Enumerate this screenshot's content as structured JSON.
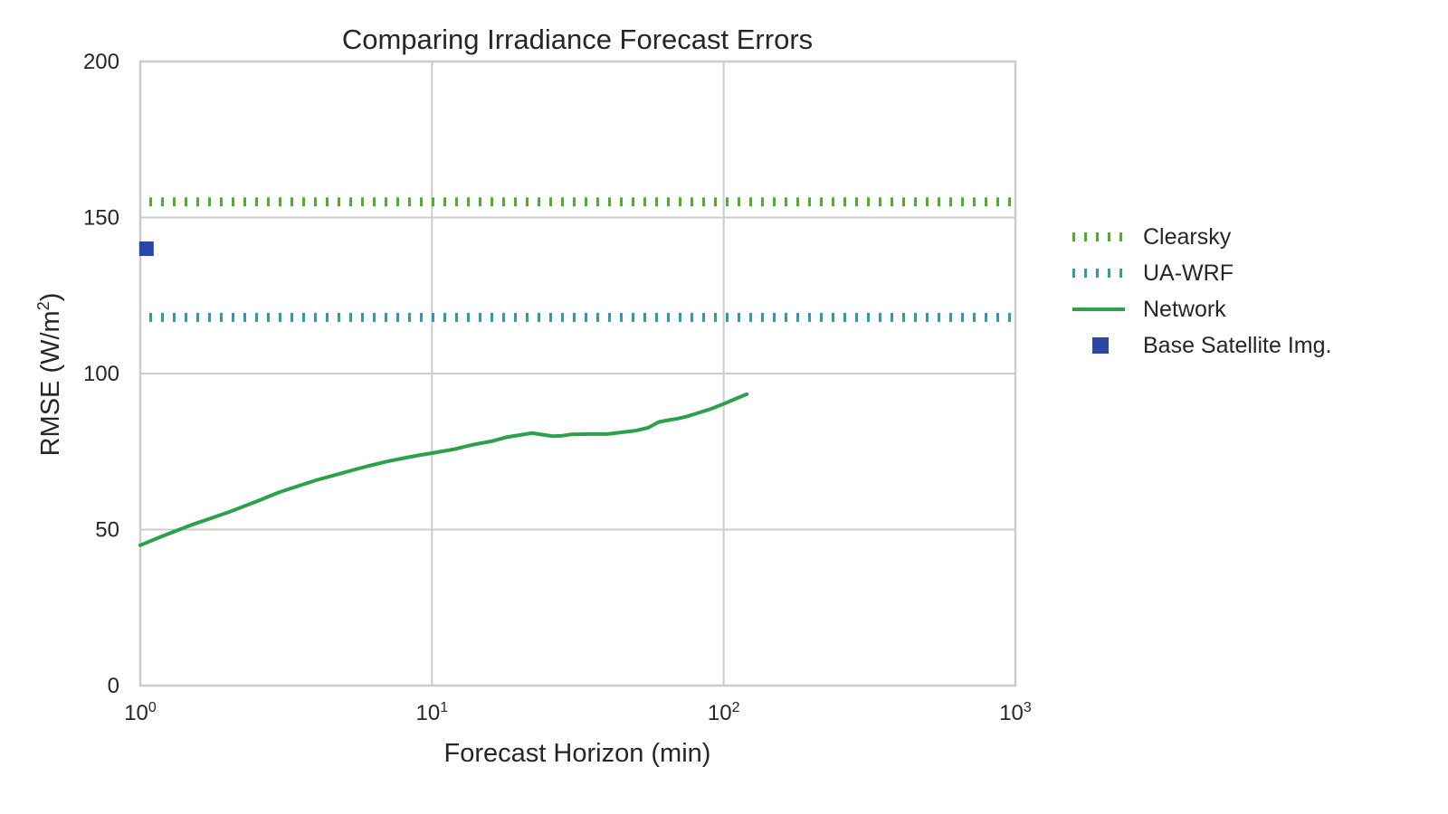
{
  "chart_data": {
    "type": "line",
    "title": "Comparing Irradiance Forecast Errors",
    "xlabel": "Forecast Horizon (min)",
    "ylabel_main": "RMSE (W/m",
    "ylabel_sup": "2",
    "ylabel_close": ")",
    "x_scale": "log",
    "xlim": [
      1,
      1000
    ],
    "ylim": [
      0,
      200
    ],
    "grid": true,
    "legend_position": "right",
    "x_ticks": [
      {
        "value": 1,
        "base": "10",
        "exp": "0"
      },
      {
        "value": 10,
        "base": "10",
        "exp": "1"
      },
      {
        "value": 100,
        "base": "10",
        "exp": "2"
      },
      {
        "value": 1000,
        "base": "10",
        "exp": "3"
      }
    ],
    "y_ticks": [
      {
        "value": 0,
        "label": "0"
      },
      {
        "value": 50,
        "label": "50"
      },
      {
        "value": 100,
        "label": "100"
      },
      {
        "value": 150,
        "label": "150"
      },
      {
        "value": 200,
        "label": "200"
      }
    ],
    "series": [
      {
        "name": "Clearsky",
        "kind": "hline-dotted",
        "color": "#4daf2a",
        "y": 155
      },
      {
        "name": "UA-WRF",
        "kind": "hline-dotted",
        "color": "#2a9ea8",
        "y": 118
      },
      {
        "name": "Network",
        "kind": "line",
        "color": "#2ca04a",
        "points": [
          [
            1,
            45
          ],
          [
            1.2,
            48
          ],
          [
            1.5,
            51.5
          ],
          [
            2,
            55.5
          ],
          [
            2.5,
            59
          ],
          [
            3,
            62
          ],
          [
            4,
            65.8
          ],
          [
            5,
            68.3
          ],
          [
            6,
            70.3
          ],
          [
            7,
            71.8
          ],
          [
            8,
            72.9
          ],
          [
            9,
            73.8
          ],
          [
            10,
            74.5
          ],
          [
            12,
            75.8
          ],
          [
            13,
            76.6
          ],
          [
            14,
            77.3
          ],
          [
            16,
            78.3
          ],
          [
            18,
            79.6
          ],
          [
            20,
            80.3
          ],
          [
            22,
            80.9
          ],
          [
            24,
            80.4
          ],
          [
            26,
            79.9
          ],
          [
            28,
            80.1
          ],
          [
            30,
            80.5
          ],
          [
            35,
            80.6
          ],
          [
            40,
            80.6
          ],
          [
            45,
            81.2
          ],
          [
            50,
            81.7
          ],
          [
            55,
            82.6
          ],
          [
            60,
            84.5
          ],
          [
            65,
            85.1
          ],
          [
            70,
            85.6
          ],
          [
            75,
            86.3
          ],
          [
            80,
            87.1
          ],
          [
            90,
            88.6
          ],
          [
            100,
            90.3
          ],
          [
            110,
            91.9
          ],
          [
            120,
            93.4
          ]
        ]
      },
      {
        "name": "Base Satellite Img.",
        "kind": "marker",
        "color": "#2a47a8",
        "x": 1.05,
        "y": 140
      }
    ]
  }
}
